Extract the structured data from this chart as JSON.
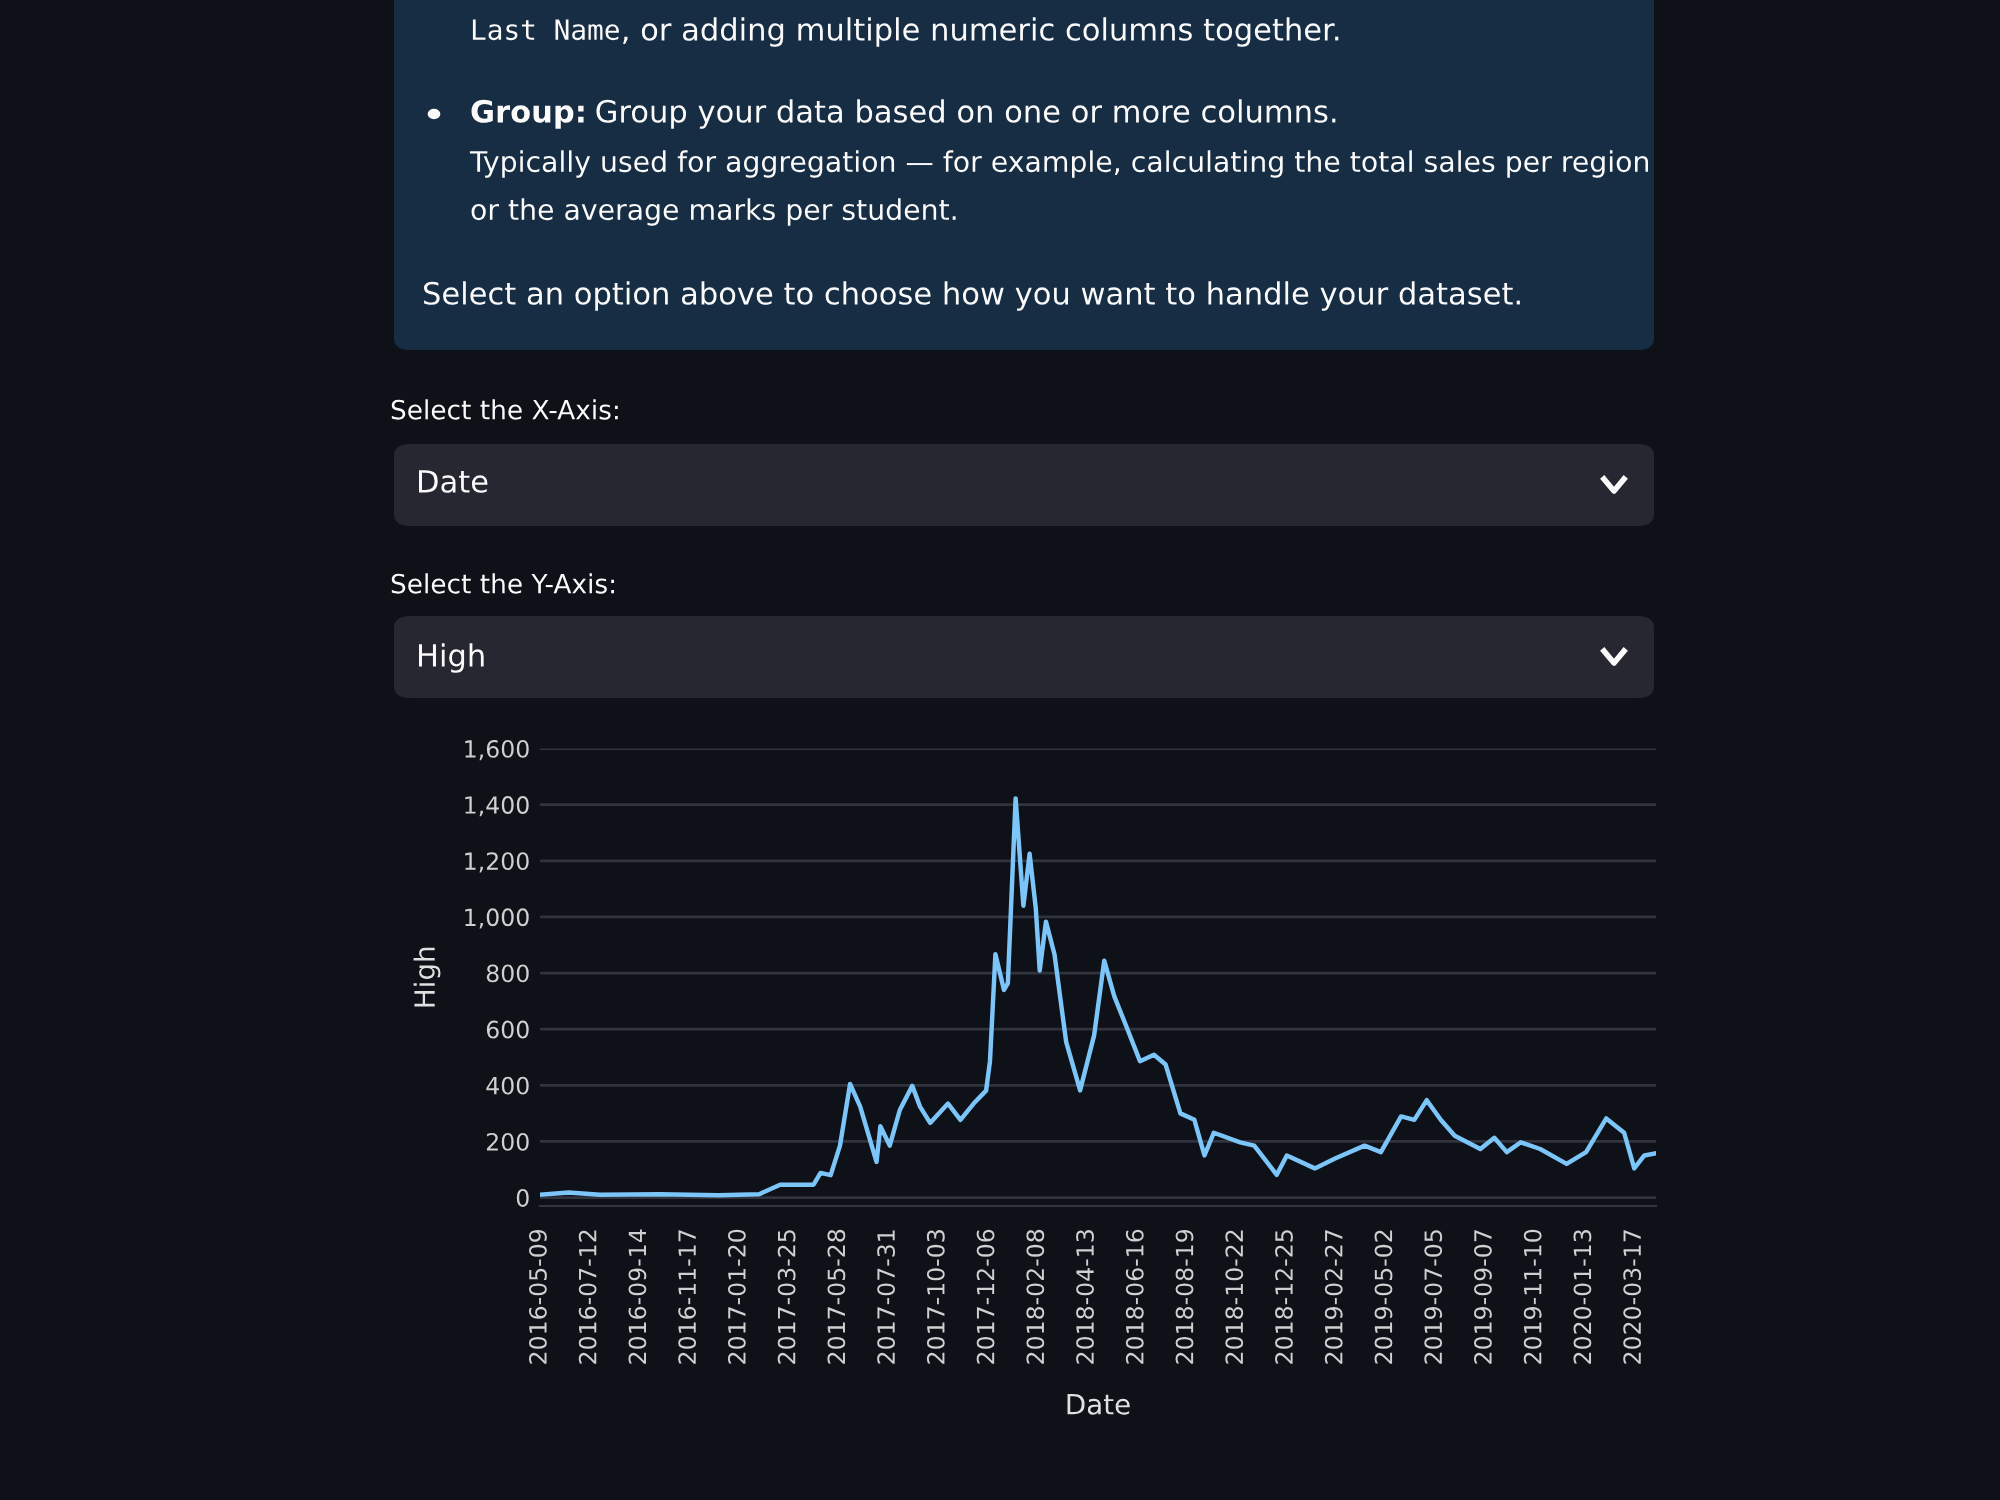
{
  "chart_data": {
    "type": "line",
    "xlabel": "Date",
    "ylabel": "High",
    "annotations": [
      "Last Name",
      ", or adding multiple numeric columns together.",
      "Group:",
      "Group your data based on one or more columns.",
      "Typically used for aggregation — for example, calculating the total sales per region",
      "or the average marks per student.",
      "Select an option above to choose how you want to handle your dataset.",
      "Select the X-Axis:",
      "Date",
      "Select the Y-Axis:",
      "High"
    ],
    "x": [
      "2016-05-09",
      "2016-06-15",
      "2016-07-25",
      "2016-10-10",
      "2016-12-25",
      "2017-02-15",
      "2017-03-14",
      "2017-04-26",
      "2017-05-05",
      "2017-05-18",
      "2017-05-30",
      "2017-06-12",
      "2017-06-25",
      "2017-07-16",
      "2017-07-21",
      "2017-08-02",
      "2017-08-15",
      "2017-08-31",
      "2017-09-10",
      "2017-09-23",
      "2017-10-16",
      "2017-11-01",
      "2017-11-18",
      "2017-12-04",
      "2017-12-09",
      "2017-12-16",
      "2017-12-27",
      "2018-01-01",
      "2018-01-11",
      "2018-01-21",
      "2018-01-29",
      "2018-02-06",
      "2018-02-11",
      "2018-02-19",
      "2018-03-02",
      "2018-03-17",
      "2018-04-04",
      "2018-04-22",
      "2018-05-05",
      "2018-05-18",
      "2018-06-02",
      "2018-06-20",
      "2018-07-08",
      "2018-07-23",
      "2018-08-11",
      "2018-08-29",
      "2018-09-11",
      "2018-09-23",
      "2018-10-27",
      "2018-11-14",
      "2018-12-13",
      "2018-12-26",
      "2019-01-31",
      "2019-02-26",
      "2019-04-05",
      "2019-04-26",
      "2019-05-22",
      "2019-06-08",
      "2019-06-24",
      "2019-07-12",
      "2019-07-30",
      "2019-09-01",
      "2019-09-19",
      "2019-10-05",
      "2019-10-23",
      "2019-11-17",
      "2019-12-21",
      "2020-01-15",
      "2020-02-10",
      "2020-03-04",
      "2020-03-17",
      "2020-03-30",
      "2020-04-12"
    ],
    "series": [
      {
        "color": "#7cc5f8",
        "values": [
          10,
          18,
          10,
          12,
          8,
          12,
          46,
          46,
          88,
          80,
          185,
          405,
          324,
          127,
          254,
          185,
          312,
          398,
          324,
          266,
          335,
          277,
          335,
          381,
          486,
          867,
          740,
          763,
          1422,
          1040,
          1225,
          1029,
          809,
          983,
          867,
          555,
          382,
          578,
          844,
          717,
          613,
          486,
          509,
          474,
          300,
          277,
          150,
          231,
          197,
          185,
          81,
          150,
          104,
          139,
          185,
          162,
          289,
          277,
          347,
          277,
          220,
          173,
          213,
          162,
          197,
          173,
          120,
          162,
          282,
          231,
          104,
          150,
          157
        ]
      }
    ],
    "xlim": [
      "2016-05-09",
      "2020-04-14"
    ],
    "xticks": [
      "2016-05-09",
      "2016-07-12",
      "2016-09-14",
      "2016-11-17",
      "2017-01-20",
      "2017-03-25",
      "2017-05-28",
      "2017-07-31",
      "2017-10-03",
      "2017-12-06",
      "2018-02-08",
      "2018-04-13",
      "2018-06-16",
      "2018-08-19",
      "2018-10-22",
      "2018-12-25",
      "2019-02-27",
      "2019-05-02",
      "2019-07-05",
      "2019-09-07",
      "2019-11-10",
      "2020-01-13",
      "2020-03-17"
    ],
    "ylim": [
      -30,
      1600
    ],
    "yticks": [
      {
        "value": 0,
        "label": "0"
      },
      {
        "value": 200,
        "label": "200"
      },
      {
        "value": 400,
        "label": "400"
      },
      {
        "value": 600,
        "label": "600"
      },
      {
        "value": 800,
        "label": "800"
      },
      {
        "value": 1000,
        "label": "1,000"
      },
      {
        "value": 1200,
        "label": "1,200"
      },
      {
        "value": 1400,
        "label": "1,400"
      },
      {
        "value": 1600,
        "label": "1,600"
      }
    ],
    "grid": "y",
    "legend": false,
    "marker": "none",
    "line_style": "solid"
  }
}
